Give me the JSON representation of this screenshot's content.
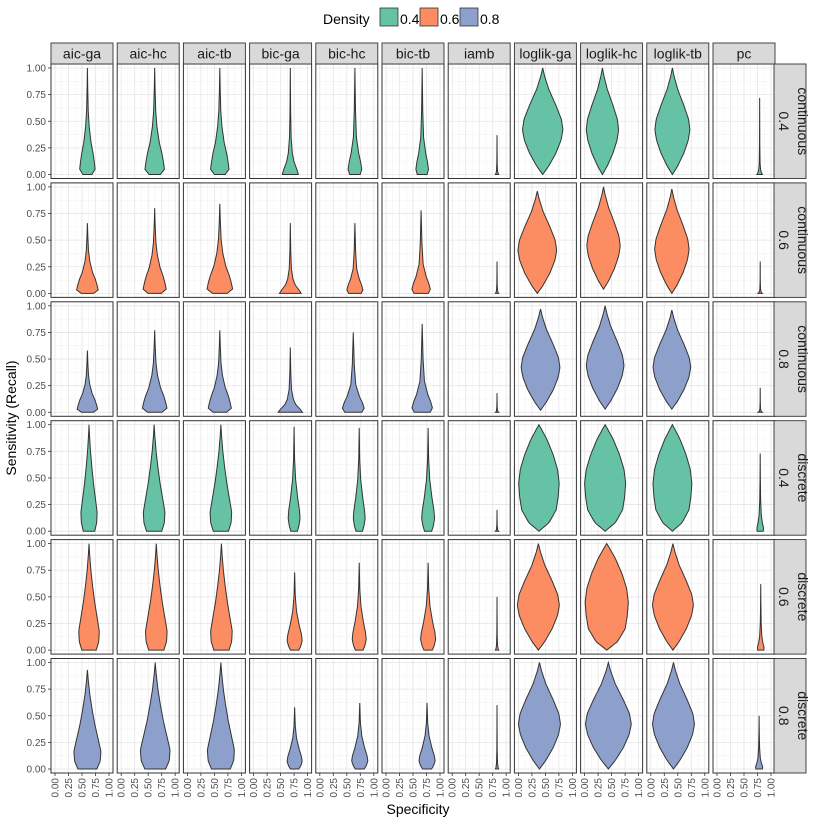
{
  "chart_data": {
    "type": "violin",
    "legend": {
      "title": "Density",
      "position": "top",
      "entries": [
        {
          "label": "0.4",
          "color": "#66C2A5"
        },
        {
          "label": "0.6",
          "color": "#FC8D62"
        },
        {
          "label": "0.8",
          "color": "#8DA0CB"
        }
      ]
    },
    "xlabel": "Specificity",
    "ylabel": "Sensitivity (Recall)",
    "xlim": [
      0,
      1
    ],
    "ylim": [
      0,
      1
    ],
    "x_ticks": [
      "0.00",
      "0.25",
      "0.50",
      "0.75",
      "1.00"
    ],
    "y_ticks": [
      "0.00",
      "0.25",
      "0.50",
      "0.75",
      "1.00"
    ],
    "grid": true,
    "columns": [
      "aic-ga",
      "aic-hc",
      "aic-tb",
      "bic-ga",
      "bic-hc",
      "bic-tb",
      "iamb",
      "loglik-ga",
      "loglik-hc",
      "loglik-tb",
      "pc"
    ],
    "rows": [
      {
        "type": "continuous",
        "density": "0.4",
        "color": "#66C2A5"
      },
      {
        "type": "continuous",
        "density": "0.6",
        "color": "#FC8D62"
      },
      {
        "type": "continuous",
        "density": "0.8",
        "color": "#8DA0CB"
      },
      {
        "type": "discrete",
        "density": "0.4",
        "color": "#66C2A5"
      },
      {
        "type": "discrete",
        "density": "0.6",
        "color": "#FC8D62"
      },
      {
        "type": "discrete",
        "density": "0.8",
        "color": "#8DA0CB"
      }
    ],
    "profiles": {
      "aic_c": [
        [
          0,
          0.55
        ],
        [
          0.05,
          0.95
        ],
        [
          0.12,
          0.85
        ],
        [
          0.2,
          0.7
        ],
        [
          0.3,
          0.45
        ],
        [
          0.45,
          0.22
        ],
        [
          0.6,
          0.1
        ],
        [
          0.8,
          0.04
        ],
        [
          1,
          0
        ]
      ],
      "aic_d": [
        [
          0,
          0.7
        ],
        [
          0.08,
          0.95
        ],
        [
          0.18,
          1
        ],
        [
          0.3,
          0.8
        ],
        [
          0.45,
          0.55
        ],
        [
          0.6,
          0.35
        ],
        [
          0.75,
          0.18
        ],
        [
          0.9,
          0.06
        ],
        [
          1,
          0
        ]
      ],
      "bic_c": [
        [
          0,
          1
        ],
        [
          0.05,
          0.8
        ],
        [
          0.12,
          0.45
        ],
        [
          0.2,
          0.25
        ],
        [
          0.35,
          0.1
        ],
        [
          0.6,
          0.04
        ],
        [
          1,
          0
        ]
      ],
      "bic_cm": [
        [
          0,
          0.7
        ],
        [
          0.05,
          0.9
        ],
        [
          0.12,
          0.75
        ],
        [
          0.2,
          0.5
        ],
        [
          0.35,
          0.2
        ],
        [
          0.6,
          0.08
        ],
        [
          1,
          0
        ]
      ],
      "bic_d": [
        [
          0,
          0.55
        ],
        [
          0.05,
          0.8
        ],
        [
          0.12,
          1
        ],
        [
          0.2,
          0.9
        ],
        [
          0.32,
          0.6
        ],
        [
          0.5,
          0.25
        ],
        [
          0.7,
          0.08
        ],
        [
          1,
          0
        ]
      ],
      "iamb": [
        [
          0,
          1
        ],
        [
          0.03,
          0.6
        ],
        [
          0.1,
          0.3
        ],
        [
          0.3,
          0.12
        ],
        [
          0.6,
          0.05
        ],
        [
          1,
          0
        ]
      ],
      "pc": [
        [
          0,
          1
        ],
        [
          0.02,
          0.7
        ],
        [
          0.06,
          0.35
        ],
        [
          0.15,
          0.15
        ],
        [
          0.4,
          0.05
        ],
        [
          1,
          0
        ]
      ],
      "pc_d": [
        [
          0,
          0.8
        ],
        [
          0.04,
          0.9
        ],
        [
          0.1,
          0.6
        ],
        [
          0.2,
          0.3
        ],
        [
          0.4,
          0.12
        ],
        [
          0.7,
          0.04
        ],
        [
          1,
          0
        ]
      ],
      "loglik": [
        [
          0,
          0
        ],
        [
          0.08,
          0.3
        ],
        [
          0.2,
          0.65
        ],
        [
          0.32,
          0.9
        ],
        [
          0.42,
          1
        ],
        [
          0.52,
          0.92
        ],
        [
          0.65,
          0.65
        ],
        [
          0.8,
          0.3
        ],
        [
          0.92,
          0.1
        ],
        [
          1,
          0
        ]
      ],
      "loglik_d": [
        [
          0,
          0
        ],
        [
          0.08,
          0.5
        ],
        [
          0.2,
          0.85
        ],
        [
          0.32,
          0.95
        ],
        [
          0.45,
          1
        ],
        [
          0.58,
          0.92
        ],
        [
          0.72,
          0.7
        ],
        [
          0.86,
          0.4
        ],
        [
          0.96,
          0.12
        ],
        [
          1,
          0
        ]
      ]
    },
    "violins": [
      [
        {
          "cx": 0.6,
          "y0": 0,
          "y1": 1,
          "w": 0.3,
          "p": "aic_c"
        },
        {
          "cx": 0.62,
          "y0": 0,
          "y1": 1,
          "w": 0.38,
          "p": "aic_c"
        },
        {
          "cx": 0.6,
          "y0": 0,
          "y1": 1,
          "w": 0.36,
          "p": "aic_c"
        },
        {
          "cx": 0.68,
          "y0": 0,
          "y1": 1,
          "w": 0.3,
          "p": "bic_c"
        },
        {
          "cx": 0.65,
          "y0": 0,
          "y1": 1,
          "w": 0.28,
          "p": "bic_cm"
        },
        {
          "cx": 0.67,
          "y0": 0,
          "y1": 1,
          "w": 0.26,
          "p": "bic_cm"
        },
        {
          "cx": 0.83,
          "y0": 0,
          "y1": 0.37,
          "w": 0.06,
          "p": "iamb"
        },
        {
          "cx": 0.45,
          "y0": 0,
          "y1": 1,
          "w": 0.75,
          "p": "loglik"
        },
        {
          "cx": 0.33,
          "y0": 0,
          "y1": 1,
          "w": 0.6,
          "p": "loglik"
        },
        {
          "cx": 0.4,
          "y0": 0,
          "y1": 1,
          "w": 0.65,
          "p": "loglik"
        },
        {
          "cx": 0.79,
          "y0": 0,
          "y1": 0.72,
          "w": 0.1,
          "p": "pc"
        }
      ],
      [
        {
          "cx": 0.6,
          "y0": 0,
          "y1": 0.66,
          "w": 0.42,
          "p": "aic_c"
        },
        {
          "cx": 0.62,
          "y0": 0,
          "y1": 0.8,
          "w": 0.45,
          "p": "aic_c"
        },
        {
          "cx": 0.6,
          "y0": 0,
          "y1": 0.84,
          "w": 0.5,
          "p": "aic_c"
        },
        {
          "cx": 0.68,
          "y0": 0,
          "y1": 0.66,
          "w": 0.4,
          "p": "bic_c"
        },
        {
          "cx": 0.65,
          "y0": 0,
          "y1": 0.66,
          "w": 0.33,
          "p": "bic_cm"
        },
        {
          "cx": 0.65,
          "y0": 0,
          "y1": 0.78,
          "w": 0.38,
          "p": "bic_cm"
        },
        {
          "cx": 0.83,
          "y0": 0,
          "y1": 0.3,
          "w": 0.06,
          "p": "iamb"
        },
        {
          "cx": 0.35,
          "y0": 0,
          "y1": 0.96,
          "w": 0.72,
          "p": "loglik"
        },
        {
          "cx": 0.35,
          "y0": 0.04,
          "y1": 1,
          "w": 0.62,
          "p": "loglik"
        },
        {
          "cx": 0.39,
          "y0": 0,
          "y1": 0.98,
          "w": 0.64,
          "p": "loglik"
        },
        {
          "cx": 0.8,
          "y0": 0,
          "y1": 0.3,
          "w": 0.08,
          "p": "pc"
        }
      ],
      [
        {
          "cx": 0.6,
          "y0": 0,
          "y1": 0.58,
          "w": 0.4,
          "p": "aic_c"
        },
        {
          "cx": 0.62,
          "y0": 0,
          "y1": 0.77,
          "w": 0.48,
          "p": "aic_c"
        },
        {
          "cx": 0.6,
          "y0": 0,
          "y1": 0.77,
          "w": 0.45,
          "p": "aic_c"
        },
        {
          "cx": 0.68,
          "y0": 0,
          "y1": 0.61,
          "w": 0.45,
          "p": "bic_c"
        },
        {
          "cx": 0.62,
          "y0": 0,
          "y1": 0.75,
          "w": 0.45,
          "p": "bic_cm"
        },
        {
          "cx": 0.67,
          "y0": 0,
          "y1": 0.83,
          "w": 0.42,
          "p": "bic_cm"
        },
        {
          "cx": 0.83,
          "y0": 0,
          "y1": 0.18,
          "w": 0.06,
          "p": "iamb"
        },
        {
          "cx": 0.41,
          "y0": 0.02,
          "y1": 0.97,
          "w": 0.72,
          "p": "loglik"
        },
        {
          "cx": 0.38,
          "y0": 0.03,
          "y1": 1,
          "w": 0.7,
          "p": "loglik"
        },
        {
          "cx": 0.39,
          "y0": 0.03,
          "y1": 0.96,
          "w": 0.7,
          "p": "loglik"
        },
        {
          "cx": 0.8,
          "y0": 0,
          "y1": 0.23,
          "w": 0.08,
          "p": "pc"
        }
      ],
      [
        {
          "cx": 0.63,
          "y0": 0,
          "y1": 1,
          "w": 0.3,
          "p": "aic_d"
        },
        {
          "cx": 0.61,
          "y0": 0,
          "y1": 1,
          "w": 0.4,
          "p": "aic_d"
        },
        {
          "cx": 0.62,
          "y0": 0,
          "y1": 1,
          "w": 0.4,
          "p": "aic_d"
        },
        {
          "cx": 0.75,
          "y0": 0,
          "y1": 0.98,
          "w": 0.22,
          "p": "bic_d"
        },
        {
          "cx": 0.73,
          "y0": 0,
          "y1": 0.97,
          "w": 0.22,
          "p": "bic_d"
        },
        {
          "cx": 0.78,
          "y0": 0,
          "y1": 0.97,
          "w": 0.24,
          "p": "bic_d"
        },
        {
          "cx": 0.83,
          "y0": 0,
          "y1": 0.2,
          "w": 0.06,
          "p": "iamb"
        },
        {
          "cx": 0.38,
          "y0": 0,
          "y1": 1,
          "w": 0.75,
          "p": "loglik_d"
        },
        {
          "cx": 0.38,
          "y0": 0,
          "y1": 1,
          "w": 0.76,
          "p": "loglik_d"
        },
        {
          "cx": 0.4,
          "y0": 0,
          "y1": 1,
          "w": 0.72,
          "p": "loglik_d"
        },
        {
          "cx": 0.8,
          "y0": 0,
          "y1": 0.73,
          "w": 0.14,
          "p": "pc_d"
        }
      ],
      [
        {
          "cx": 0.63,
          "y0": 0,
          "y1": 1,
          "w": 0.38,
          "p": "aic_d"
        },
        {
          "cx": 0.65,
          "y0": 0,
          "y1": 1,
          "w": 0.4,
          "p": "aic_d"
        },
        {
          "cx": 0.63,
          "y0": 0,
          "y1": 1,
          "w": 0.4,
          "p": "aic_d"
        },
        {
          "cx": 0.76,
          "y0": 0,
          "y1": 0.73,
          "w": 0.28,
          "p": "bic_d"
        },
        {
          "cx": 0.73,
          "y0": 0,
          "y1": 0.82,
          "w": 0.26,
          "p": "bic_d"
        },
        {
          "cx": 0.78,
          "y0": 0,
          "y1": 0.82,
          "w": 0.28,
          "p": "bic_d"
        },
        {
          "cx": 0.83,
          "y0": 0,
          "y1": 0.5,
          "w": 0.06,
          "p": "iamb"
        },
        {
          "cx": 0.37,
          "y0": 0,
          "y1": 1,
          "w": 0.78,
          "p": "loglik"
        },
        {
          "cx": 0.41,
          "y0": 0,
          "y1": 1,
          "w": 0.8,
          "p": "loglik_d"
        },
        {
          "cx": 0.41,
          "y0": 0,
          "y1": 1,
          "w": 0.76,
          "p": "loglik"
        },
        {
          "cx": 0.81,
          "y0": 0,
          "y1": 0.62,
          "w": 0.14,
          "p": "pc_d"
        }
      ],
      [
        {
          "cx": 0.6,
          "y0": 0,
          "y1": 0.93,
          "w": 0.5,
          "p": "aic_d"
        },
        {
          "cx": 0.63,
          "y0": 0,
          "y1": 1,
          "w": 0.55,
          "p": "aic_d"
        },
        {
          "cx": 0.62,
          "y0": 0,
          "y1": 1,
          "w": 0.5,
          "p": "aic_d"
        },
        {
          "cx": 0.76,
          "y0": 0,
          "y1": 0.58,
          "w": 0.28,
          "p": "bic_d"
        },
        {
          "cx": 0.74,
          "y0": 0,
          "y1": 0.62,
          "w": 0.3,
          "p": "bic_d"
        },
        {
          "cx": 0.76,
          "y0": 0,
          "y1": 0.62,
          "w": 0.3,
          "p": "bic_d"
        },
        {
          "cx": 0.83,
          "y0": 0,
          "y1": 0.6,
          "w": 0.06,
          "p": "iamb"
        },
        {
          "cx": 0.39,
          "y0": 0,
          "y1": 1,
          "w": 0.78,
          "p": "loglik"
        },
        {
          "cx": 0.44,
          "y0": 0,
          "y1": 1,
          "w": 0.85,
          "p": "loglik"
        },
        {
          "cx": 0.42,
          "y0": 0,
          "y1": 1,
          "w": 0.78,
          "p": "loglik"
        },
        {
          "cx": 0.78,
          "y0": 0,
          "y1": 0.5,
          "w": 0.15,
          "p": "pc_d"
        }
      ]
    ]
  }
}
